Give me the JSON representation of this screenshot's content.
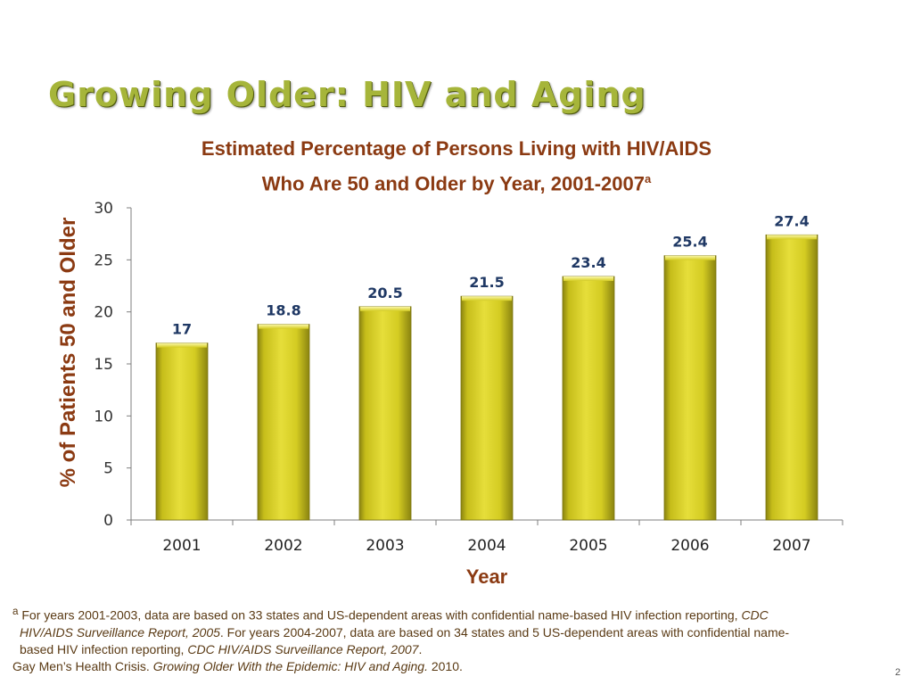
{
  "slide": {
    "title": "Growing Older: HIV and Aging",
    "page_number": "2"
  },
  "chart_data": {
    "type": "bar",
    "title_line1": "Estimated Percentage of Persons Living with HIV/AIDS",
    "title_line2": "Who Are 50 and Older by Year, 2001-2007",
    "title_superscript": "a",
    "xlabel": "Year",
    "ylabel": "% of Patients 50 and Older",
    "categories": [
      "2001",
      "2002",
      "2003",
      "2004",
      "2005",
      "2006",
      "2007"
    ],
    "values": [
      17,
      18.8,
      20.5,
      21.5,
      23.4,
      25.4,
      27.4
    ],
    "data_labels": [
      "17",
      "18.8",
      "20.5",
      "21.5",
      "23.4",
      "25.4",
      "27.4"
    ],
    "ylim": [
      0,
      30
    ],
    "yticks": [
      "0",
      "5",
      "10",
      "15",
      "20",
      "25",
      "30"
    ],
    "grid": false,
    "colors": {
      "bar_fill": "#d4cc22",
      "bar_light": "#f2ee7a",
      "bar_dark": "#8a8410",
      "axis_label": "#8b3a12",
      "data_label": "#1f3864",
      "title_color": "#a6b53a"
    }
  },
  "footnote": {
    "superscript": "a",
    "line1_plain": " For years 2001-2003, data are based on 33 states and US-dependent areas with confidential name-based HIV infection reporting, ",
    "line1_italic": "CDC",
    "line2_italic": "HIV/AIDS Surveillance Report, 2005",
    "line2_plain": ". For years 2004-2007, data are based on 34 states and 5 US-dependent areas with confidential name-",
    "line3_plain": "based HIV infection reporting, ",
    "line3_italic": "CDC HIV/AIDS Surveillance Report, 2007",
    "line3_end": ".",
    "source_plain": "Gay Men’s Health Crisis. ",
    "source_italic": "Growing Older With the Epidemic: HIV and Aging.",
    "source_end": " 2010."
  }
}
